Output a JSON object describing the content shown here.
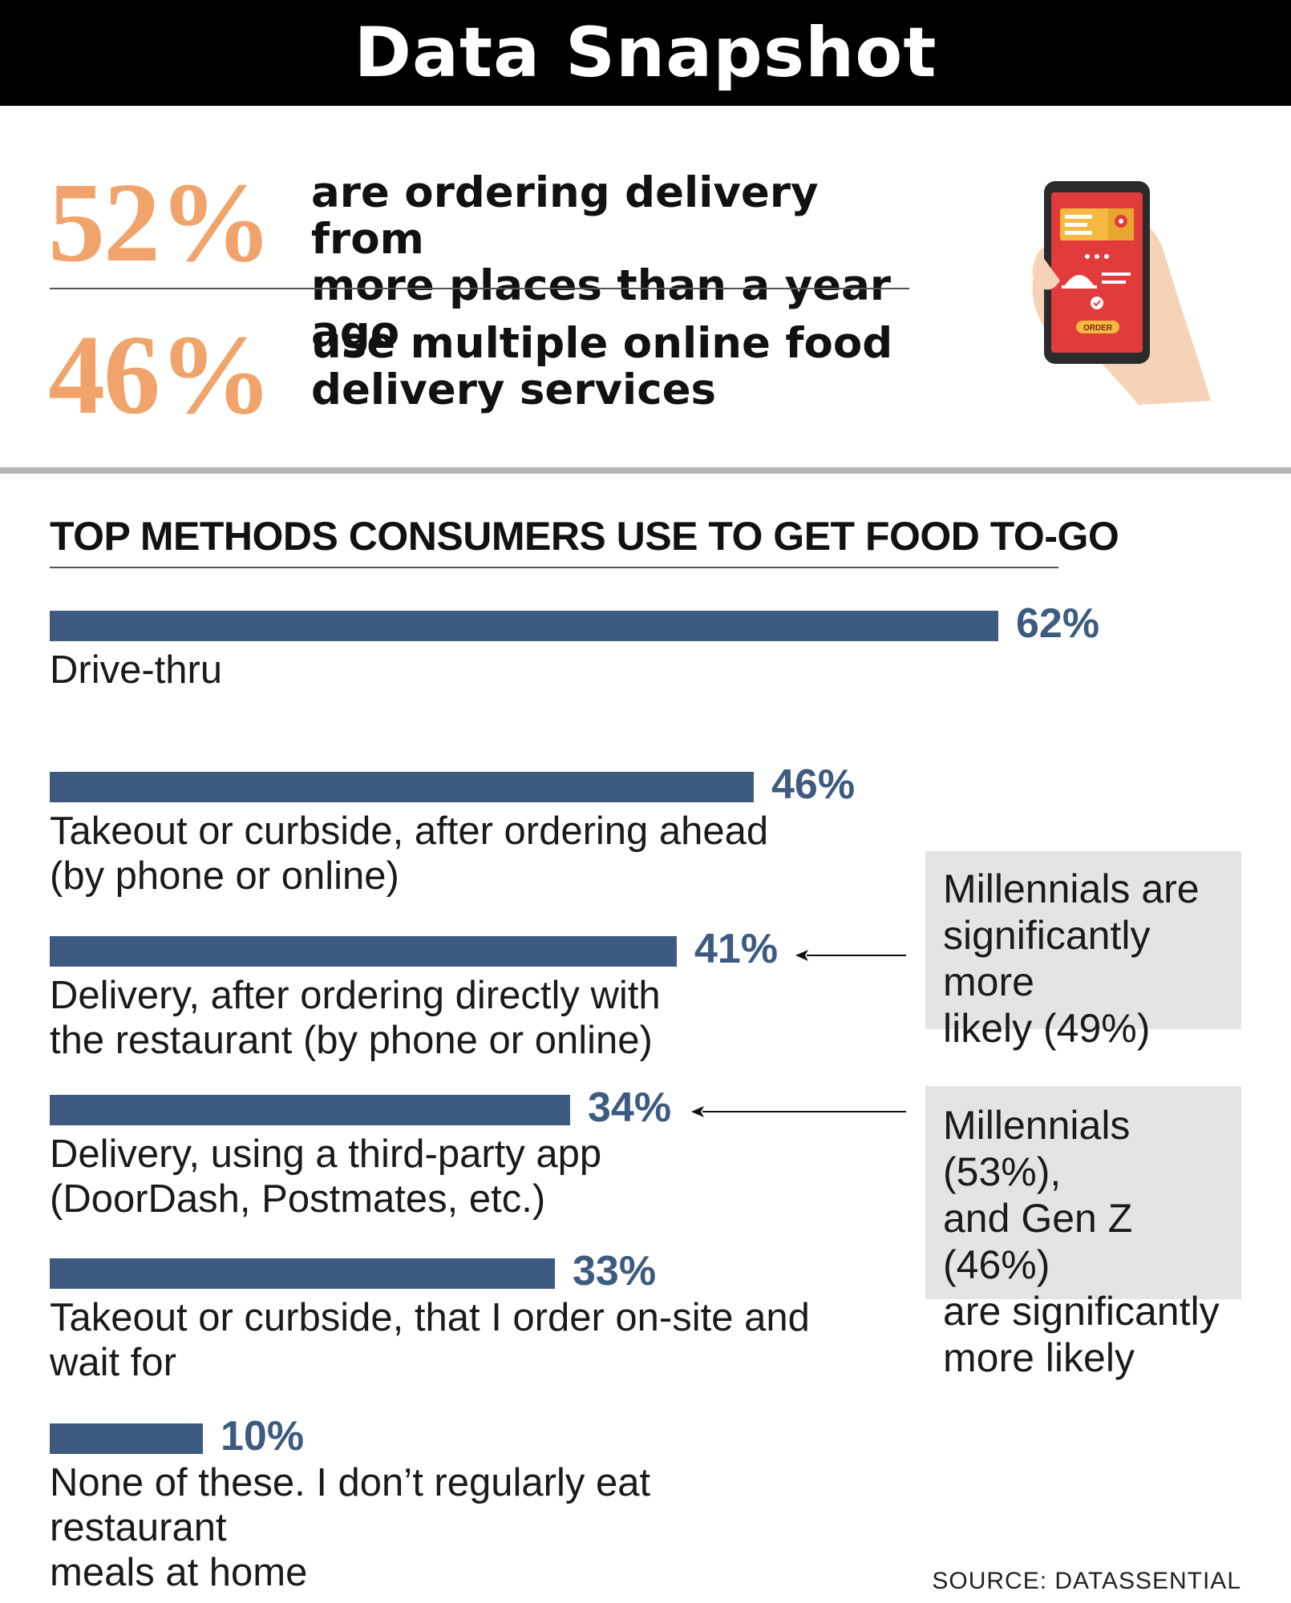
{
  "header": {
    "title": "Data Snapshot"
  },
  "stats": [
    {
      "value": "52%",
      "text_line1": "are ordering delivery from",
      "text_line2": "more places than a year ago"
    },
    {
      "value": "46%",
      "text_line1": "use multiple online food",
      "text_line2": "delivery services"
    }
  ],
  "phone": {
    "button_label": "ORDER"
  },
  "colors": {
    "accent_orange": "#f0a46b",
    "bar_blue": "#3d5a80",
    "callout_gray": "#e3e4e6"
  },
  "chart_data": {
    "type": "bar",
    "orientation": "horizontal",
    "title": "TOP METHODS CONSUMERS USE TO GET FOOD TO-GO",
    "categories": [
      [
        "Drive-thru"
      ],
      [
        "Takeout or curbside, after ordering ahead",
        "(by phone or online)"
      ],
      [
        "Delivery, after ordering directly with",
        "the restaurant (by phone or online)"
      ],
      [
        "Delivery, using a third-party app",
        "(DoorDash, Postmates, etc.)"
      ],
      [
        "Takeout or curbside, that I order on-site and",
        "wait for"
      ],
      [
        "None of these. I don’t regularly eat restaurant",
        "meals at home"
      ]
    ],
    "values": [
      62,
      46,
      41,
      34,
      33,
      10
    ],
    "value_labels": [
      "62%",
      "46%",
      "41%",
      "34%",
      "33%",
      "10%"
    ],
    "annotations": [
      {
        "points_to": 2,
        "lines": [
          "Millennials are",
          "significantly more",
          "likely (49%)"
        ]
      },
      {
        "points_to": 3,
        "lines": [
          "Millennials (53%),",
          "and Gen Z (46%)",
          "are significantly",
          "more likely"
        ]
      }
    ]
  },
  "source": "SOURCE: DATASSENTIAL"
}
